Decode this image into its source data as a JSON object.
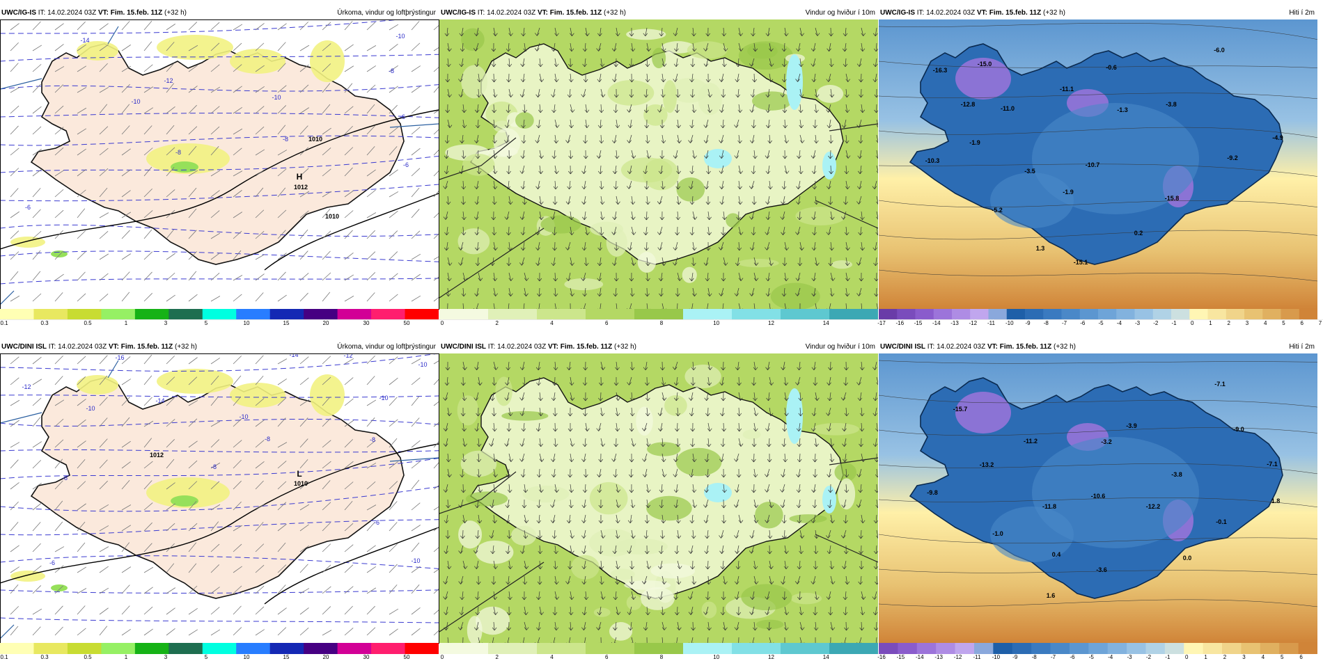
{
  "panels": [
    {
      "model": "UWC/IG-IS",
      "it_label": "IT:",
      "it": "14.02.2024 03Z",
      "vt_label": "VT:",
      "vt": "Fim. 15.feb. 11Z",
      "lead": "(+32 h)",
      "title": "Úrkoma, vindur og loftþrýstingur",
      "type": "precip",
      "colorbar": {
        "colors": [
          "#ffffb4",
          "#e8e860",
          "#c8dc32",
          "#96f064",
          "#16b216",
          "#1e6e50",
          "#00ffe0",
          "#287dff",
          "#1428b4",
          "#460082",
          "#d20096",
          "#ff1e6e",
          "#ff0000"
        ],
        "labels": [
          "0.1",
          "0.3",
          "0.5",
          "1",
          "3",
          "5",
          "10",
          "15",
          "20",
          "30",
          "50"
        ]
      },
      "labels": [
        {
          "t": "H",
          "x": 430,
          "y": 226,
          "c": "black",
          "big": true
        },
        {
          "t": "1012",
          "x": 432,
          "y": 241,
          "c": "black"
        },
        {
          "t": "1010",
          "x": 477,
          "y": 283,
          "c": "black"
        },
        {
          "t": "1010",
          "x": 453,
          "y": 172,
          "c": "black"
        },
        {
          "t": "-14",
          "x": 122,
          "y": 30,
          "c": "blue"
        },
        {
          "t": "-10",
          "x": 575,
          "y": 24,
          "c": "blue"
        },
        {
          "t": "-8",
          "x": 562,
          "y": 74,
          "c": "blue"
        },
        {
          "t": "-12",
          "x": 242,
          "y": 88,
          "c": "blue"
        },
        {
          "t": "-10",
          "x": 195,
          "y": 118,
          "c": "blue"
        },
        {
          "t": "-10",
          "x": 397,
          "y": 112,
          "c": "blue"
        },
        {
          "t": "-6",
          "x": 578,
          "y": 140,
          "c": "blue"
        },
        {
          "t": "-8",
          "x": 410,
          "y": 172,
          "c": "blue"
        },
        {
          "t": "-6",
          "x": 583,
          "y": 209,
          "c": "blue"
        },
        {
          "t": "-6",
          "x": 40,
          "y": 270,
          "c": "blue"
        },
        {
          "t": "-8",
          "x": 256,
          "y": 191,
          "c": "blue"
        }
      ]
    },
    {
      "model": "UWC/IG-IS",
      "it_label": "IT:",
      "it": "14.02.2024 03Z",
      "vt_label": "VT:",
      "vt": "Fim. 15.feb. 11Z",
      "lead": "(+32 h)",
      "title": "Vindur og hviður í 10m",
      "type": "wind",
      "colorbar": {
        "colors": [
          "#f4fae0",
          "#e0f0b8",
          "#cce68c",
          "#b4d864",
          "#98c84a",
          "#aaf2f5",
          "#82e0e6",
          "#5ec8d0",
          "#3ca8b4"
        ],
        "labels": [
          "0",
          "2",
          "4",
          "6",
          "8",
          "10",
          "12",
          "14"
        ]
      },
      "labels": []
    },
    {
      "model": "UWC/IG-IS",
      "it_label": "IT:",
      "it": "14.02.2024 03Z",
      "vt_label": "VT:",
      "vt": "Fim. 15.feb. 11Z",
      "lead": "(+32 h)",
      "title": "Hiti í 2m",
      "type": "temp",
      "colorbar": {
        "colors": [
          "#6a3ca8",
          "#7a4cbc",
          "#8a5ccc",
          "#9c74da",
          "#ae8ce4",
          "#c0a6ee",
          "#8aa8dc",
          "#1e5fa8",
          "#2c6cb4",
          "#3a7ac0",
          "#4a88c8",
          "#5c96d0",
          "#6ea4d8",
          "#82b2de",
          "#98c2e4",
          "#b0d2e6",
          "#cce0e0",
          "#fff6b4",
          "#f8e6a0",
          "#f0d48a",
          "#e8c272",
          "#e0b060",
          "#d89a4c",
          "#d08438"
        ],
        "labels": [
          "-17",
          "-16",
          "-15",
          "-14",
          "-13",
          "-12",
          "-11",
          "-10",
          "-9",
          "-8",
          "-7",
          "-6",
          "-5",
          "-4",
          "-3",
          "-2",
          "-1",
          "0",
          "1",
          "2",
          "3",
          "4",
          "5",
          "6",
          "7"
        ]
      },
      "labels": [
        {
          "t": "-15.0",
          "x": 152,
          "y": 64,
          "c": "black"
        },
        {
          "t": "-16.3",
          "x": 88,
          "y": 73,
          "c": "black"
        },
        {
          "t": "-12.8",
          "x": 128,
          "y": 122,
          "c": "black"
        },
        {
          "t": "-11.0",
          "x": 185,
          "y": 128,
          "c": "black"
        },
        {
          "t": "-11.1",
          "x": 270,
          "y": 100,
          "c": "black"
        },
        {
          "t": "-0.6",
          "x": 334,
          "y": 69,
          "c": "black"
        },
        {
          "t": "-1.3",
          "x": 350,
          "y": 130,
          "c": "black"
        },
        {
          "t": "-3.8",
          "x": 420,
          "y": 122,
          "c": "black"
        },
        {
          "t": "-6.0",
          "x": 489,
          "y": 44,
          "c": "black"
        },
        {
          "t": "-4.9",
          "x": 573,
          "y": 170,
          "c": "black"
        },
        {
          "t": "-1.9",
          "x": 138,
          "y": 177,
          "c": "black"
        },
        {
          "t": "-10.3",
          "x": 77,
          "y": 203,
          "c": "black"
        },
        {
          "t": "-3.5",
          "x": 217,
          "y": 218,
          "c": "black"
        },
        {
          "t": "-10.7",
          "x": 307,
          "y": 209,
          "c": "black"
        },
        {
          "t": "-9.2",
          "x": 508,
          "y": 199,
          "c": "black"
        },
        {
          "t": "-1.9",
          "x": 272,
          "y": 248,
          "c": "black"
        },
        {
          "t": "-15.8",
          "x": 421,
          "y": 257,
          "c": "black"
        },
        {
          "t": "-5.2",
          "x": 170,
          "y": 274,
          "c": "black"
        },
        {
          "t": "0.2",
          "x": 373,
          "y": 307,
          "c": "black"
        },
        {
          "t": "1.3",
          "x": 232,
          "y": 329,
          "c": "black"
        },
        {
          "t": "-15.1",
          "x": 290,
          "y": 349,
          "c": "black"
        }
      ]
    },
    {
      "model": "UWC/DINI ISL",
      "it_label": "IT:",
      "it": "14.02.2024 03Z",
      "vt_label": "VT:",
      "vt": "Fim. 15.feb. 11Z",
      "lead": "(+32 h)",
      "title": "Úrkoma, vindur og loftþrýstingur",
      "type": "precip",
      "colorbar": {
        "colors": [
          "#ffffb4",
          "#e8e860",
          "#c8dc32",
          "#96f064",
          "#16b216",
          "#1e6e50",
          "#00ffe0",
          "#287dff",
          "#1428b4",
          "#460082",
          "#d20096",
          "#ff1e6e",
          "#ff0000"
        ],
        "labels": [
          "0.1",
          "0.3",
          "0.5",
          "1",
          "3",
          "5",
          "10",
          "15",
          "20",
          "30",
          "50"
        ]
      },
      "labels": [
        {
          "t": "L",
          "x": 430,
          "y": 173,
          "c": "black",
          "big": true
        },
        {
          "t": "1010",
          "x": 432,
          "y": 187,
          "c": "black"
        },
        {
          "t": "1012",
          "x": 225,
          "y": 146,
          "c": "black"
        },
        {
          "t": "-16",
          "x": 172,
          "y": 6,
          "c": "blue"
        },
        {
          "t": "-14",
          "x": 422,
          "y": 2,
          "c": "blue"
        },
        {
          "t": "-12",
          "x": 500,
          "y": 3,
          "c": "blue"
        },
        {
          "t": "-10",
          "x": 607,
          "y": 16,
          "c": "blue"
        },
        {
          "t": "-12",
          "x": 38,
          "y": 48,
          "c": "blue"
        },
        {
          "t": "-10",
          "x": 130,
          "y": 79,
          "c": "blue"
        },
        {
          "t": "-14",
          "x": 230,
          "y": 68,
          "c": "blue"
        },
        {
          "t": "-10",
          "x": 350,
          "y": 91,
          "c": "blue"
        },
        {
          "t": "-10",
          "x": 551,
          "y": 64,
          "c": "blue"
        },
        {
          "t": "-8",
          "x": 384,
          "y": 123,
          "c": "blue"
        },
        {
          "t": "-8",
          "x": 535,
          "y": 124,
          "c": "blue"
        },
        {
          "t": "-8",
          "x": 93,
          "y": 179,
          "c": "blue"
        },
        {
          "t": "-8",
          "x": 307,
          "y": 163,
          "c": "blue"
        },
        {
          "t": "-6",
          "x": 541,
          "y": 243,
          "c": "blue"
        },
        {
          "t": "-10",
          "x": 597,
          "y": 298,
          "c": "blue"
        },
        {
          "t": "-6",
          "x": 75,
          "y": 301,
          "c": "blue"
        }
      ]
    },
    {
      "model": "UWC/DINI ISL",
      "it_label": "IT:",
      "it": "14.02.2024 03Z",
      "vt_label": "VT:",
      "vt": "Fim. 15.feb. 11Z",
      "lead": "(+32 h)",
      "title": "Vindur og hviður í 10m",
      "type": "wind",
      "colorbar": {
        "colors": [
          "#f4fae0",
          "#e0f0b8",
          "#cce68c",
          "#b4d864",
          "#98c84a",
          "#aaf2f5",
          "#82e0e6",
          "#5ec8d0",
          "#3ca8b4"
        ],
        "labels": [
          "0",
          "2",
          "4",
          "6",
          "8",
          "10",
          "12",
          "14"
        ]
      },
      "labels": []
    },
    {
      "model": "UWC/DINI ISL",
      "it_label": "IT:",
      "it": "14.02.2024 03Z",
      "vt_label": "VT:",
      "vt": "Fim. 15.feb. 11Z",
      "lead": "(+32 h)",
      "title": "Hiti í 2m",
      "type": "temp",
      "colorbar": {
        "colors": [
          "#7a4cbc",
          "#8a5ccc",
          "#9c74da",
          "#ae8ce4",
          "#c0a6ee",
          "#8aa8dc",
          "#1e5fa8",
          "#2c6cb4",
          "#3a7ac0",
          "#4a88c8",
          "#5c96d0",
          "#6ea4d8",
          "#82b2de",
          "#98c2e4",
          "#b0d2e6",
          "#cce0e0",
          "#fff6b4",
          "#f8e6a0",
          "#f0d48a",
          "#e8c272",
          "#e0b060",
          "#d89a4c",
          "#d08438"
        ],
        "labels": [
          "-16",
          "-15",
          "-14",
          "-13",
          "-12",
          "-11",
          "-10",
          "-9",
          "-8",
          "-7",
          "-6",
          "-5",
          "-4",
          "-3",
          "-2",
          "-1",
          "0",
          "1",
          "2",
          "3",
          "4",
          "5",
          "6"
        ]
      },
      "labels": [
        {
          "t": "-15.7",
          "x": 117,
          "y": 80,
          "c": "black"
        },
        {
          "t": "-7.1",
          "x": 490,
          "y": 44,
          "c": "black"
        },
        {
          "t": "-9.0",
          "x": 517,
          "y": 109,
          "c": "black"
        },
        {
          "t": "-11.2",
          "x": 218,
          "y": 126,
          "c": "black"
        },
        {
          "t": "-3.2",
          "x": 327,
          "y": 127,
          "c": "black"
        },
        {
          "t": "-3.9",
          "x": 363,
          "y": 104,
          "c": "black"
        },
        {
          "t": "-7.1",
          "x": 565,
          "y": 159,
          "c": "black"
        },
        {
          "t": "-13.2",
          "x": 155,
          "y": 160,
          "c": "black"
        },
        {
          "t": "-3.8",
          "x": 428,
          "y": 174,
          "c": "black"
        },
        {
          "t": "-9.8",
          "x": 77,
          "y": 200,
          "c": "black"
        },
        {
          "t": "-10.6",
          "x": 315,
          "y": 205,
          "c": "black"
        },
        {
          "t": "1.8",
          "x": 570,
          "y": 212,
          "c": "black"
        },
        {
          "t": "-11.8",
          "x": 245,
          "y": 220,
          "c": "black"
        },
        {
          "t": "-12.2",
          "x": 394,
          "y": 220,
          "c": "black"
        },
        {
          "t": "-0.1",
          "x": 492,
          "y": 242,
          "c": "black"
        },
        {
          "t": "-1.0",
          "x": 171,
          "y": 259,
          "c": "black"
        },
        {
          "t": "0.4",
          "x": 255,
          "y": 289,
          "c": "black"
        },
        {
          "t": "0.0",
          "x": 443,
          "y": 294,
          "c": "black"
        },
        {
          "t": "-3.6",
          "x": 320,
          "y": 311,
          "c": "black"
        },
        {
          "t": "1.6",
          "x": 247,
          "y": 348,
          "c": "black"
        }
      ]
    }
  ]
}
